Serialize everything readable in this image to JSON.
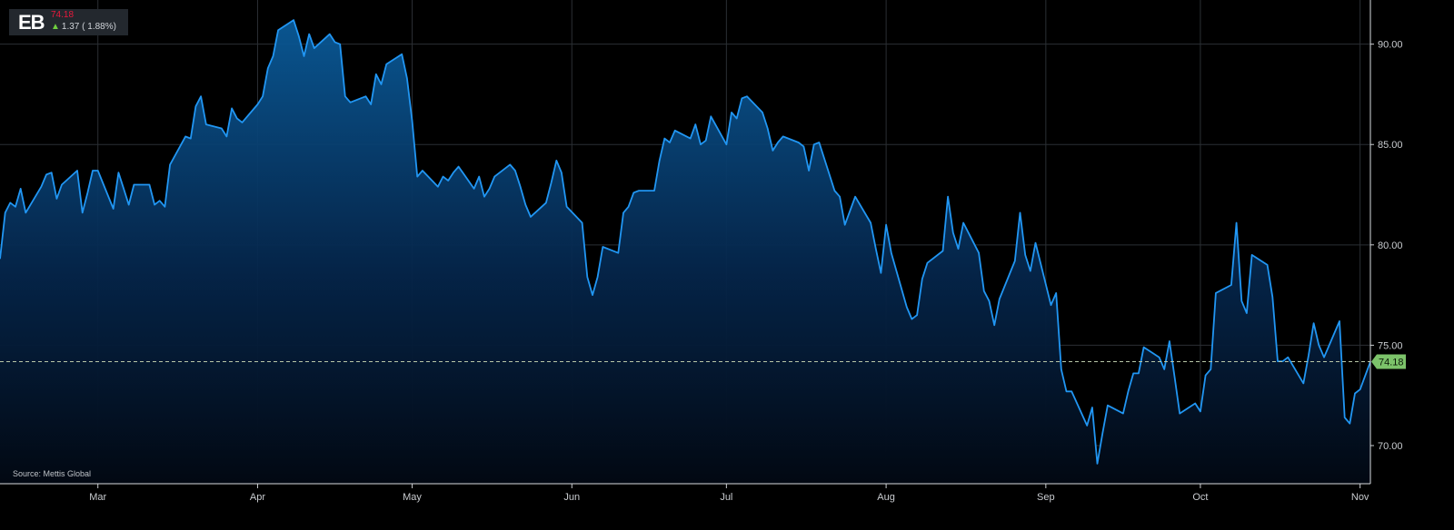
{
  "ticker": {
    "symbol": "EB",
    "price": "74.18",
    "change": "1.37 ( 1.88%)",
    "change_direction": "up",
    "icon": "arrow-up-icon"
  },
  "source": "Source: Mettis Global",
  "colors": {
    "background": "#000000",
    "line": "#2196f3",
    "last_price_badge": "#7cc36a",
    "price_down_text": "#e8193c",
    "arrow_up": "#6fcf3f"
  },
  "chart_data": {
    "type": "area",
    "title": "",
    "xlabel": "",
    "ylabel": "",
    "ylim": [
      68.1,
      92.2
    ],
    "y_ticks": [
      "70.00",
      "75.00",
      "80.00",
      "85.00",
      "90.00"
    ],
    "x_tick_labels": [
      {
        "label": "Mar",
        "x": "2024-03-01"
      },
      {
        "label": "Apr",
        "x": "2024-04-01"
      },
      {
        "label": "May",
        "x": "2024-05-01"
      },
      {
        "label": "Jun",
        "x": "2024-06-01"
      },
      {
        "label": "Jul",
        "x": "2024-07-01"
      },
      {
        "label": "Aug",
        "x": "2024-08-01"
      },
      {
        "label": "Sep",
        "x": "2024-09-01"
      },
      {
        "label": "Oct",
        "x": "2024-10-01"
      },
      {
        "label": "Nov",
        "x": "2024-11-01"
      }
    ],
    "xlim": [
      "2024-02-11",
      "2024-11-03"
    ],
    "grid": true,
    "last_price": 74.18,
    "last_price_label": "74.18",
    "series": [
      {
        "values": [
          [
            "2024-02-11",
            79.3
          ],
          [
            "2024-02-12",
            81.6
          ],
          [
            "2024-02-13",
            82.1
          ],
          [
            "2024-02-14",
            81.9
          ],
          [
            "2024-02-15",
            82.8
          ],
          [
            "2024-02-16",
            81.6
          ],
          [
            "2024-02-19",
            82.9
          ],
          [
            "2024-02-20",
            83.5
          ],
          [
            "2024-02-21",
            83.6
          ],
          [
            "2024-02-22",
            82.3
          ],
          [
            "2024-02-23",
            83.0
          ],
          [
            "2024-02-26",
            83.7
          ],
          [
            "2024-02-27",
            81.6
          ],
          [
            "2024-02-28",
            82.6
          ],
          [
            "2024-02-29",
            83.7
          ],
          [
            "2024-03-01",
            83.7
          ],
          [
            "2024-03-04",
            81.8
          ],
          [
            "2024-03-05",
            83.6
          ],
          [
            "2024-03-06",
            82.8
          ],
          [
            "2024-03-07",
            82.0
          ],
          [
            "2024-03-08",
            83.0
          ],
          [
            "2024-03-11",
            83.0
          ],
          [
            "2024-03-12",
            82.0
          ],
          [
            "2024-03-13",
            82.2
          ],
          [
            "2024-03-14",
            81.9
          ],
          [
            "2024-03-15",
            84.0
          ],
          [
            "2024-03-18",
            85.4
          ],
          [
            "2024-03-19",
            85.3
          ],
          [
            "2024-03-20",
            86.9
          ],
          [
            "2024-03-21",
            87.4
          ],
          [
            "2024-03-22",
            86.0
          ],
          [
            "2024-03-25",
            85.8
          ],
          [
            "2024-03-26",
            85.4
          ],
          [
            "2024-03-27",
            86.8
          ],
          [
            "2024-03-28",
            86.3
          ],
          [
            "2024-03-29",
            86.1
          ],
          [
            "2024-04-01",
            87.0
          ],
          [
            "2024-04-02",
            87.4
          ],
          [
            "2024-04-03",
            88.8
          ],
          [
            "2024-04-04",
            89.4
          ],
          [
            "2024-04-05",
            90.7
          ],
          [
            "2024-04-08",
            91.2
          ],
          [
            "2024-04-09",
            90.4
          ],
          [
            "2024-04-10",
            89.4
          ],
          [
            "2024-04-11",
            90.5
          ],
          [
            "2024-04-12",
            89.8
          ],
          [
            "2024-04-15",
            90.5
          ],
          [
            "2024-04-16",
            90.1
          ],
          [
            "2024-04-17",
            90.0
          ],
          [
            "2024-04-18",
            87.4
          ],
          [
            "2024-04-19",
            87.1
          ],
          [
            "2024-04-22",
            87.4
          ],
          [
            "2024-04-23",
            87.0
          ],
          [
            "2024-04-24",
            88.5
          ],
          [
            "2024-04-25",
            88.0
          ],
          [
            "2024-04-26",
            89.0
          ],
          [
            "2024-04-29",
            89.5
          ],
          [
            "2024-04-30",
            88.3
          ],
          [
            "2024-05-01",
            86.2
          ],
          [
            "2024-05-02",
            83.4
          ],
          [
            "2024-05-03",
            83.7
          ],
          [
            "2024-05-06",
            82.9
          ],
          [
            "2024-05-07",
            83.4
          ],
          [
            "2024-05-08",
            83.2
          ],
          [
            "2024-05-09",
            83.6
          ],
          [
            "2024-05-10",
            83.9
          ],
          [
            "2024-05-13",
            82.8
          ],
          [
            "2024-05-14",
            83.4
          ],
          [
            "2024-05-15",
            82.4
          ],
          [
            "2024-05-16",
            82.8
          ],
          [
            "2024-05-17",
            83.4
          ],
          [
            "2024-05-20",
            84.0
          ],
          [
            "2024-05-21",
            83.7
          ],
          [
            "2024-05-22",
            82.9
          ],
          [
            "2024-05-23",
            82.0
          ],
          [
            "2024-05-24",
            81.4
          ],
          [
            "2024-05-27",
            82.1
          ],
          [
            "2024-05-28",
            83.1
          ],
          [
            "2024-05-29",
            84.2
          ],
          [
            "2024-05-30",
            83.6
          ],
          [
            "2024-05-31",
            81.9
          ],
          [
            "2024-06-03",
            81.1
          ],
          [
            "2024-06-04",
            78.4
          ],
          [
            "2024-06-05",
            77.5
          ],
          [
            "2024-06-06",
            78.4
          ],
          [
            "2024-06-07",
            79.9
          ],
          [
            "2024-06-10",
            79.6
          ],
          [
            "2024-06-11",
            81.6
          ],
          [
            "2024-06-12",
            81.9
          ],
          [
            "2024-06-13",
            82.6
          ],
          [
            "2024-06-14",
            82.7
          ],
          [
            "2024-06-17",
            82.7
          ],
          [
            "2024-06-18",
            84.2
          ],
          [
            "2024-06-19",
            85.3
          ],
          [
            "2024-06-20",
            85.1
          ],
          [
            "2024-06-21",
            85.7
          ],
          [
            "2024-06-24",
            85.3
          ],
          [
            "2024-06-25",
            86.0
          ],
          [
            "2024-06-26",
            85.0
          ],
          [
            "2024-06-27",
            85.2
          ],
          [
            "2024-06-28",
            86.4
          ],
          [
            "2024-07-01",
            85.0
          ],
          [
            "2024-07-02",
            86.6
          ],
          [
            "2024-07-03",
            86.3
          ],
          [
            "2024-07-04",
            87.3
          ],
          [
            "2024-07-05",
            87.4
          ],
          [
            "2024-07-08",
            86.6
          ],
          [
            "2024-07-09",
            85.8
          ],
          [
            "2024-07-10",
            84.7
          ],
          [
            "2024-07-11",
            85.1
          ],
          [
            "2024-07-12",
            85.4
          ],
          [
            "2024-07-15",
            85.1
          ],
          [
            "2024-07-16",
            84.9
          ],
          [
            "2024-07-17",
            83.7
          ],
          [
            "2024-07-18",
            85.0
          ],
          [
            "2024-07-19",
            85.1
          ],
          [
            "2024-07-22",
            82.7
          ],
          [
            "2024-07-23",
            82.4
          ],
          [
            "2024-07-24",
            81.0
          ],
          [
            "2024-07-25",
            81.7
          ],
          [
            "2024-07-26",
            82.4
          ],
          [
            "2024-07-29",
            81.1
          ],
          [
            "2024-07-30",
            79.8
          ],
          [
            "2024-07-31",
            78.6
          ],
          [
            "2024-08-01",
            81.0
          ],
          [
            "2024-08-02",
            79.6
          ],
          [
            "2024-08-05",
            76.9
          ],
          [
            "2024-08-06",
            76.3
          ],
          [
            "2024-08-07",
            76.5
          ],
          [
            "2024-08-08",
            78.3
          ],
          [
            "2024-08-09",
            79.1
          ],
          [
            "2024-08-12",
            79.7
          ],
          [
            "2024-08-13",
            82.4
          ],
          [
            "2024-08-14",
            80.6
          ],
          [
            "2024-08-15",
            79.8
          ],
          [
            "2024-08-16",
            81.1
          ],
          [
            "2024-08-19",
            79.6
          ],
          [
            "2024-08-20",
            77.7
          ],
          [
            "2024-08-21",
            77.2
          ],
          [
            "2024-08-22",
            76.0
          ],
          [
            "2024-08-23",
            77.3
          ],
          [
            "2024-08-26",
            79.2
          ],
          [
            "2024-08-27",
            81.6
          ],
          [
            "2024-08-28",
            79.5
          ],
          [
            "2024-08-29",
            78.7
          ],
          [
            "2024-08-30",
            80.1
          ],
          [
            "2024-09-02",
            77.0
          ],
          [
            "2024-09-03",
            77.6
          ],
          [
            "2024-09-04",
            73.8
          ],
          [
            "2024-09-05",
            72.7
          ],
          [
            "2024-09-06",
            72.7
          ],
          [
            "2024-09-09",
            71.0
          ],
          [
            "2024-09-10",
            71.9
          ],
          [
            "2024-09-11",
            69.1
          ],
          [
            "2024-09-12",
            70.6
          ],
          [
            "2024-09-13",
            72.0
          ],
          [
            "2024-09-16",
            71.6
          ],
          [
            "2024-09-17",
            72.7
          ],
          [
            "2024-09-18",
            73.6
          ],
          [
            "2024-09-19",
            73.6
          ],
          [
            "2024-09-20",
            74.9
          ],
          [
            "2024-09-23",
            74.4
          ],
          [
            "2024-09-24",
            73.8
          ],
          [
            "2024-09-25",
            75.2
          ],
          [
            "2024-09-26",
            73.4
          ],
          [
            "2024-09-27",
            71.6
          ],
          [
            "2024-09-30",
            72.1
          ],
          [
            "2024-10-01",
            71.7
          ],
          [
            "2024-10-02",
            73.5
          ],
          [
            "2024-10-03",
            73.8
          ],
          [
            "2024-10-04",
            77.6
          ],
          [
            "2024-10-07",
            78.0
          ],
          [
            "2024-10-08",
            81.1
          ],
          [
            "2024-10-09",
            77.2
          ],
          [
            "2024-10-10",
            76.6
          ],
          [
            "2024-10-11",
            79.5
          ],
          [
            "2024-10-14",
            79.0
          ],
          [
            "2024-10-15",
            77.4
          ],
          [
            "2024-10-16",
            74.2
          ],
          [
            "2024-10-17",
            74.2
          ],
          [
            "2024-10-18",
            74.4
          ],
          [
            "2024-10-21",
            73.1
          ],
          [
            "2024-10-22",
            74.5
          ],
          [
            "2024-10-23",
            76.1
          ],
          [
            "2024-10-24",
            75.0
          ],
          [
            "2024-10-25",
            74.4
          ],
          [
            "2024-10-28",
            76.2
          ],
          [
            "2024-10-29",
            71.4
          ],
          [
            "2024-10-30",
            71.1
          ],
          [
            "2024-10-31",
            72.6
          ],
          [
            "2024-11-01",
            72.8
          ],
          [
            "2024-11-03",
            74.18
          ]
        ]
      }
    ]
  }
}
